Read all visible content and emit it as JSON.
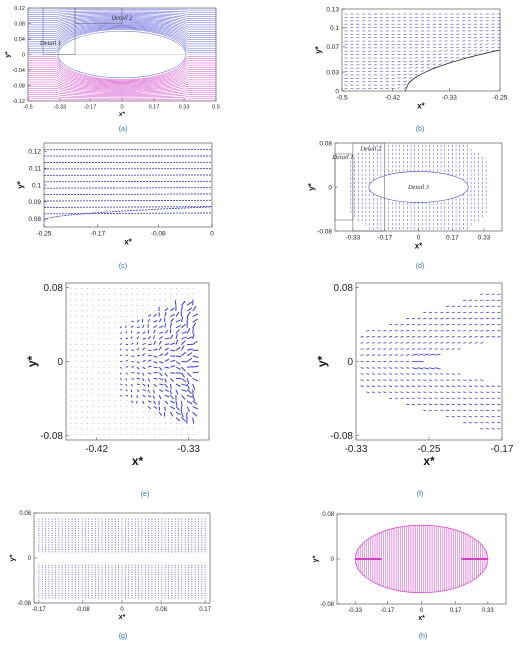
{
  "figure": {
    "panels": [
      "a",
      "b",
      "c",
      "d",
      "e",
      "f",
      "g",
      "h"
    ]
  },
  "chart_data": [
    {
      "id": "a",
      "type": "line",
      "caption": "(a)",
      "xlabel": "x*",
      "ylabel": "y*",
      "xlim": [
        -0.5,
        0.5
      ],
      "ylim": [
        -0.12,
        0.12
      ],
      "xticks": [
        "-0.5",
        "-0.33",
        "-0.17",
        "0",
        "0.17",
        "0.33",
        "0.5"
      ],
      "yticks": [
        "0.12",
        "0.08",
        "0.04",
        "0",
        "-0.04",
        "-0.08",
        "-0.12"
      ],
      "body": {
        "shape": "ellipse",
        "x_range": [
          -0.34,
          0.34
        ],
        "half_height": 0.06
      },
      "upper_color": "#4b4bd8",
      "lower_color": "#d23fc8",
      "annotations": [
        {
          "text": "Detail 2",
          "x": 0.0,
          "y": 0.09
        },
        {
          "text": "Detail 1",
          "x": -0.38,
          "y": 0.025
        }
      ],
      "details": [
        {
          "x": [
            -0.42,
            -0.25
          ],
          "y": [
            0.0,
            0.12
          ]
        },
        {
          "x": [
            -0.25,
            0.0
          ],
          "y": [
            0.08,
            0.12
          ]
        }
      ]
    },
    {
      "id": "b",
      "type": "scatter",
      "caption": "(b)",
      "xlabel": "x*",
      "ylabel": "y*",
      "xlim": [
        -0.5,
        -0.25
      ],
      "ylim": [
        0.0,
        0.13
      ],
      "xticks": [
        "-0.5",
        "-0.42",
        "-0.33",
        "-0.25"
      ],
      "yticks": [
        "0.13",
        "0.1",
        "0.07",
        "0.03",
        "0"
      ],
      "body": {
        "shape": "ellipse-arc",
        "x_start": -0.4,
        "x_end": -0.25
      },
      "color": "#4b4bd8"
    },
    {
      "id": "c",
      "type": "line",
      "caption": "(c)",
      "xlabel": "x*",
      "ylabel": "y*",
      "xlim": [
        -0.25,
        0.0
      ],
      "ylim": [
        0.075,
        0.125
      ],
      "xticks": [
        "-0.25",
        "-0.17",
        "-0.08",
        "0"
      ],
      "yticks": [
        "0.12",
        "0.11",
        "0.1",
        "0.09",
        "0.08"
      ],
      "color": "#4b4bd8"
    },
    {
      "id": "d",
      "type": "scatter",
      "caption": "(d)",
      "xlabel": "x*",
      "ylabel": "y*",
      "xlim": [
        -0.42,
        0.42
      ],
      "ylim": [
        -0.08,
        0.08
      ],
      "xticks": [
        "-0.33",
        "-0.17",
        "0",
        "0.17",
        "0.33"
      ],
      "yticks": [
        "0.08",
        "0",
        "-0.08"
      ],
      "body": {
        "shape": "ellipse",
        "x_range": [
          -0.25,
          0.25
        ],
        "half_height": 0.028
      },
      "color": "#4b4bd8",
      "annotations": [
        {
          "text": "Detail 1",
          "x": -0.38,
          "y": 0.055
        },
        {
          "text": "Detail 2",
          "x": -0.24,
          "y": 0.07
        },
        {
          "text": "Detail 3",
          "x": 0.0,
          "y": 0.0
        }
      ],
      "details": [
        {
          "x": [
            -0.42,
            -0.33
          ],
          "y": [
            -0.06,
            0.06
          ]
        },
        {
          "x": [
            -0.33,
            -0.17
          ],
          "y": [
            -0.08,
            0.08
          ]
        }
      ]
    },
    {
      "id": "e",
      "type": "scatter",
      "caption": "(e)",
      "xlabel": "x*",
      "ylabel": "y*",
      "xlim": [
        -0.45,
        -0.31
      ],
      "ylim": [
        -0.085,
        0.085
      ],
      "xticks": [
        "-0.42",
        "-0.33"
      ],
      "yticks": [
        "0.08",
        "0",
        "-0.08"
      ],
      "color": "#3a3ae0"
    },
    {
      "id": "f",
      "type": "scatter",
      "caption": "(f)",
      "xlabel": "x*",
      "ylabel": "y*",
      "xlim": [
        -0.33,
        -0.17
      ],
      "ylim": [
        -0.085,
        0.085
      ],
      "xticks": [
        "-0.33",
        "-0.25",
        "-0.17"
      ],
      "yticks": [
        "0.08",
        "0",
        "-0.08"
      ],
      "color": "#3a3ae0"
    },
    {
      "id": "g",
      "type": "scatter",
      "caption": "(g)",
      "xlabel": "x*",
      "ylabel": "y*",
      "xlim": [
        -0.18,
        0.18
      ],
      "ylim": [
        -0.08,
        0.08
      ],
      "xticks": [
        "-0.17",
        "-0.08",
        "0",
        "0.08",
        "0.17"
      ],
      "yticks": [
        "0.08",
        "0",
        "-0.08"
      ],
      "color": "#4b4bd8"
    },
    {
      "id": "h",
      "type": "line",
      "caption": "(h)",
      "xlabel": "x*",
      "ylabel": "y*",
      "xlim": [
        -0.42,
        0.42
      ],
      "ylim": [
        -0.08,
        0.08
      ],
      "xticks": [
        "-0.33",
        "-0.17",
        "0",
        "0.17",
        "0.33"
      ],
      "yticks": [
        "0.08",
        "0",
        "-0.08"
      ],
      "body": {
        "shape": "ellipse",
        "x_range": [
          -0.33,
          0.33
        ],
        "half_height": 0.06
      },
      "color": "#d23fc8"
    }
  ]
}
